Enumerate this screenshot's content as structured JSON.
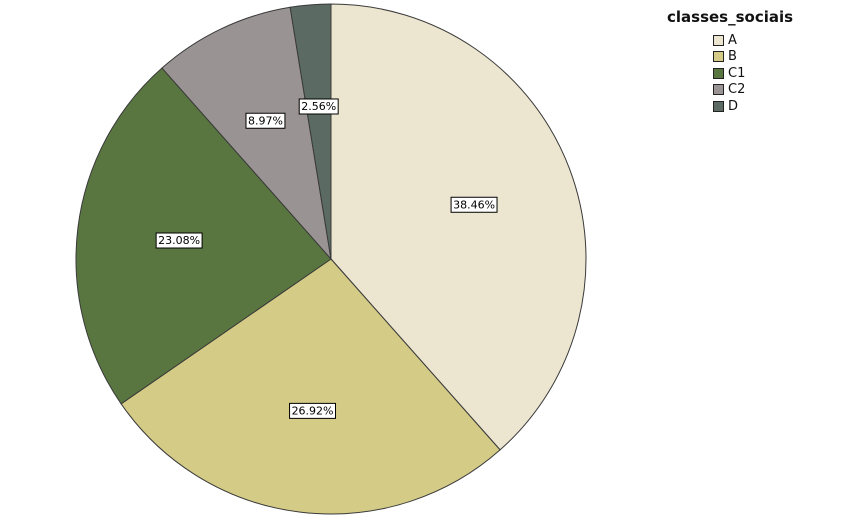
{
  "chart_data": {
    "type": "pie",
    "title": "",
    "legend_title": "classes_sociais",
    "legend_position": "top-right",
    "start_angle_deg": 0,
    "direction": "clockwise",
    "slices": [
      {
        "label": "A",
        "value": 38.46,
        "display": "38.46%",
        "color": "#ece5cf"
      },
      {
        "label": "B",
        "value": 26.92,
        "display": "26.92%",
        "color": "#d3cb86"
      },
      {
        "label": "C1",
        "value": 23.08,
        "display": "23.08%",
        "color": "#597641"
      },
      {
        "label": "C2",
        "value": 8.97,
        "display": "8.97%",
        "color": "#9a9393"
      },
      {
        "label": "D",
        "value": 2.56,
        "display": "2.56%",
        "color": "#5b6a63"
      }
    ]
  }
}
